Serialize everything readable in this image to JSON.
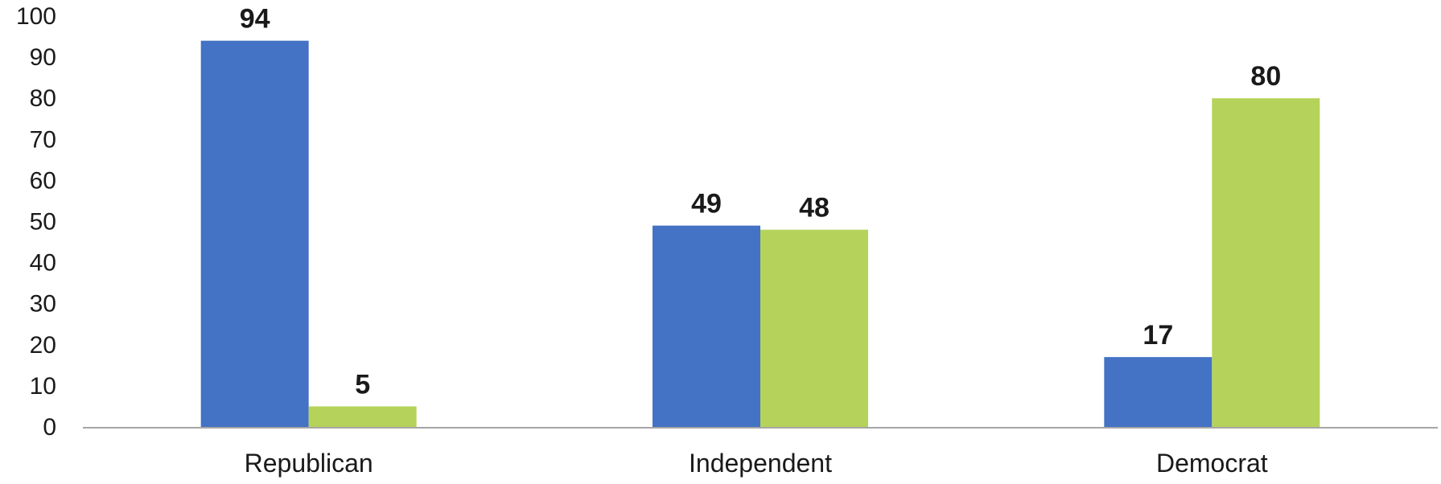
{
  "chart_data": {
    "type": "bar",
    "title": "",
    "xlabel": "",
    "ylabel": "",
    "categories": [
      "Republican",
      "Independent",
      "Democrat"
    ],
    "series": [
      {
        "values": [
          94,
          49,
          17
        ],
        "color": "#4472C4"
      },
      {
        "values": [
          5,
          48,
          80
        ],
        "color": "#B5D35A"
      }
    ],
    "ylim": [
      0,
      100
    ],
    "yticks": [
      0,
      10,
      20,
      30,
      40,
      50,
      60,
      70,
      80,
      90,
      100
    ],
    "data_labels": true,
    "grid": false,
    "legend": "none",
    "axis_color": "#A6A6A6"
  }
}
